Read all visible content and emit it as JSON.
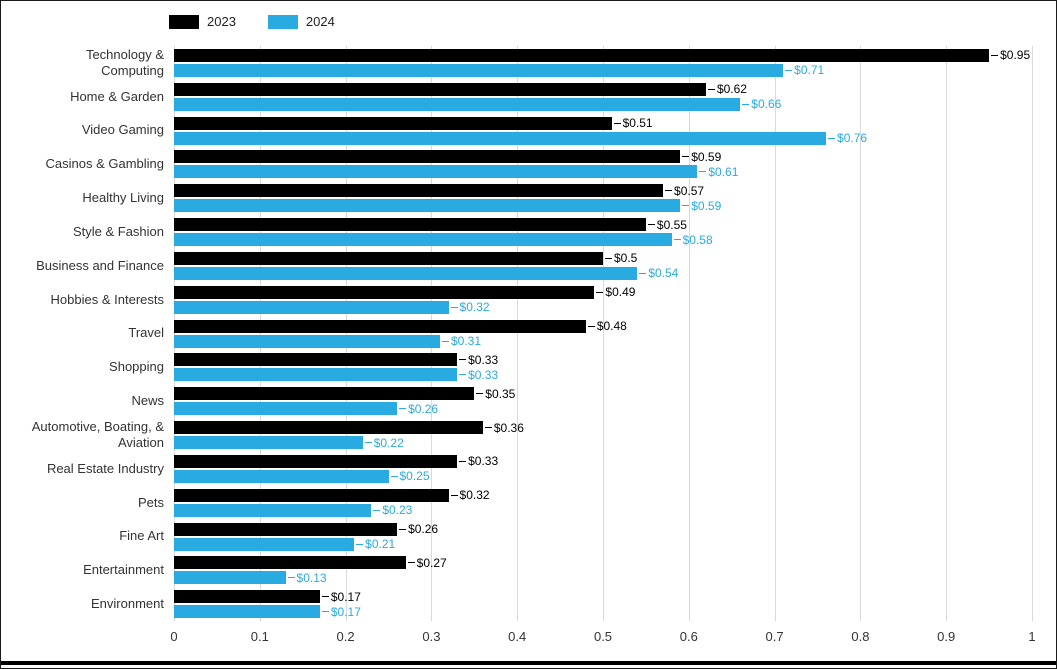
{
  "chart_data": {
    "type": "bar",
    "orientation": "horizontal",
    "title": "",
    "xlabel": "",
    "ylabel": "",
    "xlim": [
      0,
      1
    ],
    "grid": true,
    "legend_position": "top-left",
    "x_ticks": [
      "0",
      "0.1",
      "0.2",
      "0.3",
      "0.4",
      "0.5",
      "0.6",
      "0.7",
      "0.8",
      "0.9",
      "1"
    ],
    "categories": [
      "Technology & Computing",
      "Home & Garden",
      "Video Gaming",
      "Casinos & Gambling",
      "Healthy Living",
      "Style & Fashion",
      "Business and Finance",
      "Hobbies & Interests",
      "Travel",
      "Shopping",
      "News",
      "Automotive, Boating, & Aviation",
      "Real Estate Industry",
      "Pets",
      "Fine Art",
      "Entertainment",
      "Environment"
    ],
    "series": [
      {
        "name": "2023",
        "color": "#000000",
        "values": [
          0.95,
          0.62,
          0.51,
          0.59,
          0.57,
          0.55,
          0.5,
          0.49,
          0.48,
          0.33,
          0.35,
          0.36,
          0.33,
          0.32,
          0.26,
          0.27,
          0.17
        ],
        "labels": [
          "$0.95",
          "$0.62",
          "$0.51",
          "$0.59",
          "$0.57",
          "$0.55",
          "$0.5",
          "$0.49",
          "$0.48",
          "$0.33",
          "$0.35",
          "$0.36",
          "$0.33",
          "$0.32",
          "$0.26",
          "$0.27",
          "$0.17"
        ]
      },
      {
        "name": "2024",
        "color": "#29ABE2",
        "values": [
          0.71,
          0.66,
          0.76,
          0.61,
          0.59,
          0.58,
          0.54,
          0.32,
          0.31,
          0.33,
          0.26,
          0.22,
          0.25,
          0.23,
          0.21,
          0.13,
          0.17
        ],
        "labels": [
          "$0.71",
          "$0.66",
          "$0.76",
          "$0.61",
          "$0.59",
          "$0.58",
          "$0.54",
          "$0.32",
          "$0.31",
          "$0.33",
          "$0.26",
          "$0.22",
          "$0.25",
          "$0.23",
          "$0.21",
          "$0.13",
          "$0.17"
        ]
      }
    ]
  }
}
